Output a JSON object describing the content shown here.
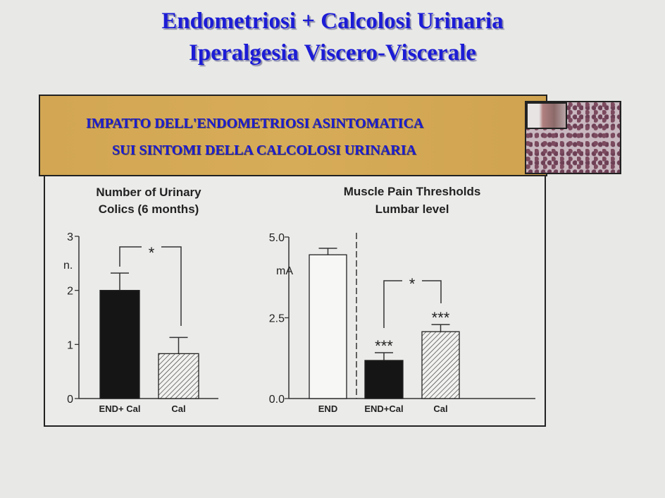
{
  "title": {
    "line1": "Endometriosi + Calcolosi Urinaria",
    "line2": "Iperalgesia Viscero-Viscerale"
  },
  "banner": {
    "line1": "IMPATTO DELL'ENDOMETRIOSI ASINTOMATICA",
    "line2": "SUI SINTOMI DELLA CALCOLOSI URINARIA"
  },
  "colors": {
    "title": "#1c1cd6",
    "banner_bg": "#d4a955",
    "banner_text": "#1c1ccf"
  },
  "chart_data": [
    {
      "type": "bar",
      "title_lines": [
        "Number of Urinary",
        "Colics (6 months)"
      ],
      "ylabel": "n.",
      "ylim": [
        0,
        3
      ],
      "yticks": [
        "0",
        "1",
        "2",
        "3"
      ],
      "categories": [
        "END+ Cal",
        "Cal"
      ],
      "values": [
        2.0,
        0.83
      ],
      "error_upper": [
        2.32,
        1.13
      ],
      "fills": [
        "solid-black",
        "hatched"
      ],
      "significance": [
        {
          "between": [
            "END+ Cal",
            "Cal"
          ],
          "label": "*"
        }
      ]
    },
    {
      "type": "bar",
      "title_lines": [
        "Muscle Pain Thresholds",
        "Lumbar level"
      ],
      "ylabel": "mA",
      "ylim": [
        0,
        5
      ],
      "yticks": [
        "0.0",
        "2.5",
        "5.0"
      ],
      "categories": [
        "END",
        "END+Cal",
        "Cal"
      ],
      "values": [
        4.45,
        1.18,
        2.07
      ],
      "error_upper": [
        4.65,
        1.42,
        2.29
      ],
      "fills": [
        "white",
        "solid-black",
        "hatched"
      ],
      "bar_labels": [
        "",
        "***",
        "***"
      ],
      "significance": [
        {
          "between": [
            "END+Cal",
            "Cal"
          ],
          "label": "*"
        }
      ]
    }
  ]
}
